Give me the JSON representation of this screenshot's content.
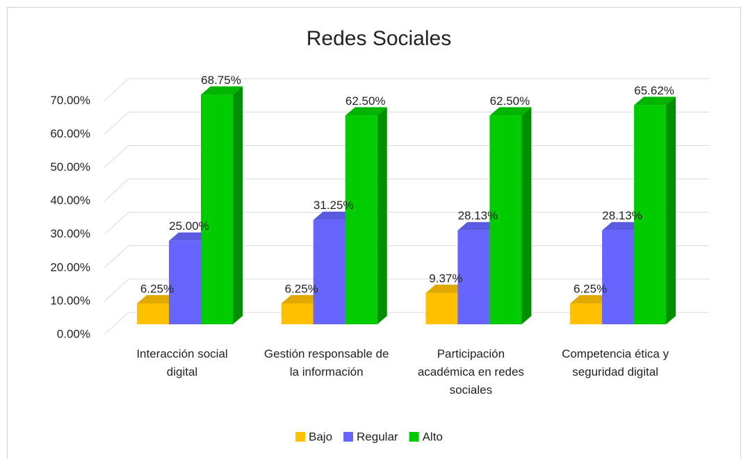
{
  "chart_data": {
    "type": "bar3d",
    "title": "Redes Sociales",
    "categories": [
      "Interacción social digital",
      "Gestión responsable de la información",
      "Participación académica en redes sociales",
      "Competencia ética y seguridad digital"
    ],
    "series": [
      {
        "name": "Bajo",
        "color": "#ffc000",
        "values": [
          6.25,
          6.25,
          9.37,
          6.25
        ],
        "value_labels": [
          "6.25%",
          "6.25%",
          "9.37%",
          "6.25%"
        ]
      },
      {
        "name": "Regular",
        "color": "#6666ff",
        "values": [
          25,
          31.25,
          28.13,
          28.13
        ],
        "value_labels": [
          "25.00%",
          "31.25%",
          "28.13%",
          "28.13%"
        ]
      },
      {
        "name": "Alto",
        "color": "#00cc00",
        "values": [
          68.75,
          62.5,
          62.5,
          65.62
        ],
        "value_labels": [
          "68.75%",
          "62.50%",
          "62.50%",
          "65.62%"
        ]
      }
    ],
    "ylim": [
      0,
      70
    ],
    "yticks": [
      {
        "value": 0,
        "label": "0.00%"
      },
      {
        "value": 10,
        "label": "10.00%"
      },
      {
        "value": 20,
        "label": "20.00%"
      },
      {
        "value": 30,
        "label": "30.00%"
      },
      {
        "value": 40,
        "label": "40.00%"
      },
      {
        "value": 50,
        "label": "50.00%"
      },
      {
        "value": 60,
        "label": "60.00%"
      },
      {
        "value": 70,
        "label": "70.00%"
      }
    ],
    "grid": true,
    "legend": "bottom"
  }
}
